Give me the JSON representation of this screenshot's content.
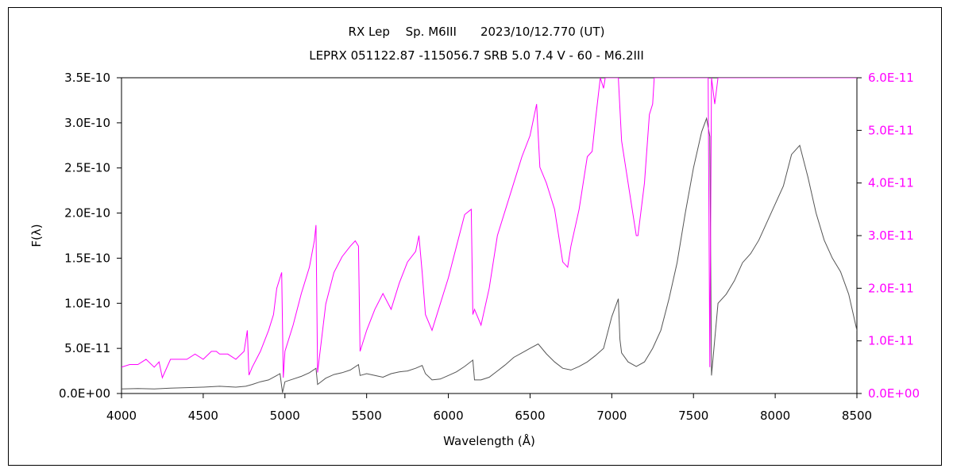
{
  "chart_data": {
    "type": "line",
    "title": "RX Lep　 Sp. M6III　　2023/10/12.770 (UT)",
    "subtitle": "LEPRX 051122.87 -115056.7 SRB 5.0 7.4 V - 60 - M6.2III",
    "xlabel": "Wavelength (Å)",
    "ylabel": "F(λ)",
    "xlim": [
      4000,
      8500
    ],
    "ylim_left": [
      0,
      3.5e-10
    ],
    "ylim_right": [
      0,
      6e-11
    ],
    "x_ticks": [
      "4000",
      "4500",
      "5000",
      "5500",
      "6000",
      "6500",
      "7000",
      "7500",
      "8000",
      "8500"
    ],
    "y_ticks_left": [
      "0.0E+00",
      "5.0E-11",
      "1.0E-10",
      "1.5E-10",
      "2.0E-10",
      "2.5E-10",
      "3.0E-10",
      "3.5E-10"
    ],
    "y_ticks_right": [
      "0.0E+00",
      "1.0E-11",
      "2.0E-11",
      "3.0E-11",
      "4.0E-11",
      "5.0E-11",
      "6.0E-11"
    ],
    "grid": false,
    "legend": "none",
    "series": [
      {
        "axis": "left",
        "color": "#555555",
        "x": [
          4000,
          4100,
          4200,
          4300,
          4400,
          4500,
          4600,
          4700,
          4760,
          4800,
          4850,
          4900,
          4950,
          4970,
          4985,
          5000,
          5050,
          5100,
          5150,
          5190,
          5200,
          5250,
          5300,
          5350,
          5400,
          5450,
          5460,
          5500,
          5550,
          5600,
          5650,
          5700,
          5750,
          5800,
          5840,
          5860,
          5900,
          5950,
          6000,
          6050,
          6100,
          6150,
          6160,
          6200,
          6250,
          6300,
          6350,
          6400,
          6450,
          6500,
          6550,
          6600,
          6650,
          6700,
          6750,
          6800,
          6850,
          6900,
          6950,
          7000,
          7040,
          7050,
          7060,
          7100,
          7150,
          7200,
          7250,
          7300,
          7350,
          7400,
          7450,
          7500,
          7550,
          7580,
          7600,
          7610,
          7650,
          7700,
          7750,
          7800,
          7850,
          7900,
          7950,
          8000,
          8050,
          8100,
          8150,
          8200,
          8250,
          8300,
          8350,
          8400,
          8450,
          8500
        ],
        "y": [
          5e-12,
          5.5e-12,
          5e-12,
          6e-12,
          6.5e-12,
          7e-12,
          8e-12,
          7e-12,
          8e-12,
          1e-11,
          1.3e-11,
          1.5e-11,
          2e-11,
          2.2e-11,
          1e-12,
          1.3e-11,
          1.6e-11,
          1.9e-11,
          2.3e-11,
          2.8e-11,
          1e-11,
          1.7e-11,
          2.1e-11,
          2.3e-11,
          2.6e-11,
          3.2e-11,
          2e-11,
          2.2e-11,
          2e-11,
          1.8e-11,
          2.2e-11,
          2.4e-11,
          2.5e-11,
          2.8e-11,
          3.1e-11,
          2.2e-11,
          1.5e-11,
          1.6e-11,
          2e-11,
          2.4e-11,
          3e-11,
          3.7e-11,
          1.5e-11,
          1.5e-11,
          1.8e-11,
          2.5e-11,
          3.2e-11,
          4e-11,
          4.5e-11,
          5e-11,
          5.5e-11,
          4.4e-11,
          3.5e-11,
          2.8e-11,
          2.6e-11,
          3e-11,
          3.5e-11,
          4.2e-11,
          5e-11,
          8.5e-11,
          1.05e-10,
          6e-11,
          4.5e-11,
          3.5e-11,
          3e-11,
          3.5e-11,
          5e-11,
          7e-11,
          1.05e-10,
          1.45e-10,
          2e-10,
          2.5e-10,
          2.9e-10,
          3.05e-10,
          2.85e-10,
          2e-11,
          1e-10,
          1.1e-10,
          1.25e-10,
          1.45e-10,
          1.55e-10,
          1.7e-10,
          1.9e-10,
          2.1e-10,
          2.3e-10,
          2.65e-10,
          2.75e-10,
          2.4e-10,
          2e-10,
          1.7e-10,
          1.5e-10,
          1.35e-10,
          1.1e-10,
          7e-11
        ]
      },
      {
        "axis": "right",
        "color": "#ff00ff",
        "x": [
          4000,
          4050,
          4100,
          4150,
          4200,
          4230,
          4250,
          4300,
          4350,
          4400,
          4450,
          4500,
          4550,
          4580,
          4600,
          4650,
          4700,
          4750,
          4770,
          4780,
          4800,
          4850,
          4900,
          4930,
          4950,
          4980,
          4990,
          5000,
          5050,
          5100,
          5150,
          5180,
          5190,
          5200,
          5250,
          5300,
          5350,
          5400,
          5430,
          5450,
          5460,
          5500,
          5550,
          5600,
          5650,
          5700,
          5750,
          5800,
          5820,
          5840,
          5860,
          5900,
          5950,
          6000,
          6050,
          6100,
          6140,
          6150,
          6160,
          6200,
          6250,
          6300,
          6350,
          6400,
          6450,
          6500,
          6540,
          6560,
          6600,
          6650,
          6700,
          6730,
          6750,
          6800,
          6850,
          6880,
          6900,
          6930,
          6950,
          6960,
          6980,
          7040,
          7060,
          7100,
          7150,
          7160,
          7200,
          7230,
          7250,
          7260,
          7300,
          7350,
          7400,
          7450,
          7500,
          7550,
          7580,
          7590,
          7600,
          7610,
          7630,
          7650,
          7700,
          7750,
          7800,
          7850,
          7900,
          7950,
          8000,
          8050,
          8100,
          8150,
          8200,
          8250,
          8300,
          8350,
          8400,
          8450,
          8500
        ],
        "y": [
          5e-12,
          5.5e-12,
          5.5e-12,
          6.5e-12,
          5e-12,
          6e-12,
          3e-12,
          6.5e-12,
          6.5e-12,
          6.5e-12,
          7.5e-12,
          6.5e-12,
          8e-12,
          8e-12,
          7.5e-12,
          7.5e-12,
          6.5e-12,
          8e-12,
          1.2e-11,
          3.5e-12,
          5e-12,
          8e-12,
          1.2e-11,
          1.5e-11,
          2e-11,
          2.3e-11,
          3e-12,
          8e-12,
          1.3e-11,
          1.9e-11,
          2.4e-11,
          2.9e-11,
          3.2e-11,
          4e-12,
          1.7e-11,
          2.3e-11,
          2.6e-11,
          2.8e-11,
          2.9e-11,
          2.8e-11,
          8e-12,
          1.2e-11,
          1.6e-11,
          1.9e-11,
          1.6e-11,
          2.1e-11,
          2.5e-11,
          2.7e-11,
          3e-11,
          2.3e-11,
          1.5e-11,
          1.2e-11,
          1.7e-11,
          2.2e-11,
          2.8e-11,
          3.4e-11,
          3.5e-11,
          1.5e-11,
          1.6e-11,
          1.3e-11,
          2e-11,
          3e-11,
          3.5e-11,
          4e-11,
          4.5e-11,
          4.9e-11,
          5.5e-11,
          4.3e-11,
          4e-11,
          3.5e-11,
          2.5e-11,
          2.4e-11,
          2.8e-11,
          3.5e-11,
          4.5e-11,
          4.6e-11,
          5.2e-11,
          6e-11,
          5.8e-11,
          6e-11,
          6e-11,
          6e-11,
          4.8e-11,
          4e-11,
          3e-11,
          3e-11,
          4e-11,
          5.3e-11,
          5.5e-11,
          6e-11,
          6e-11,
          6e-11,
          6e-11,
          6e-11,
          6e-11,
          6e-11,
          6e-11,
          6e-11,
          5e-12,
          6e-11,
          5.5e-11,
          6e-11,
          6e-11,
          6e-11,
          6e-11,
          6e-11,
          6e-11,
          6e-11,
          6e-11,
          6e-11,
          6e-11,
          6e-11,
          6e-11,
          6e-11,
          6e-11,
          6e-11,
          6e-11,
          6e-11,
          6e-11
        ]
      }
    ]
  }
}
